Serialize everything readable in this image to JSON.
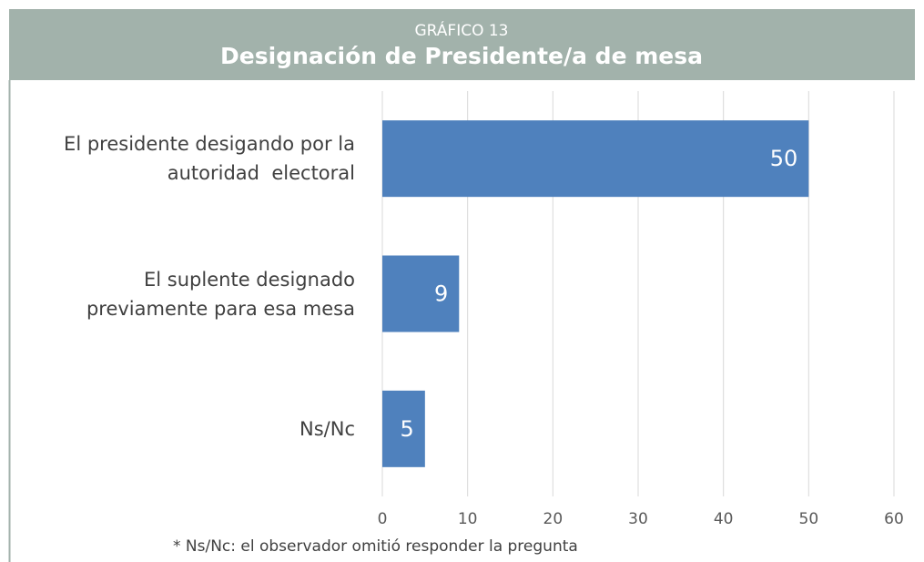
{
  "chart_data": {
    "type": "bar",
    "orientation": "horizontal",
    "kicker": "GRÁFICO 13",
    "title": "Designación de Presidente/a de mesa",
    "categories": [
      "El presidente desigando por la\nautoridad  electoral",
      "El suplente designado\npreviamente para esa mesa",
      "Ns/Nc"
    ],
    "values": [
      50,
      9,
      5
    ],
    "color": "#4f81bd",
    "xlim": [
      0,
      60
    ],
    "xticks": [
      0,
      10,
      20,
      30,
      40,
      50,
      60
    ],
    "grid": true,
    "footnote": "* Ns/Nc: el observador omitió responder la pregunta"
  }
}
